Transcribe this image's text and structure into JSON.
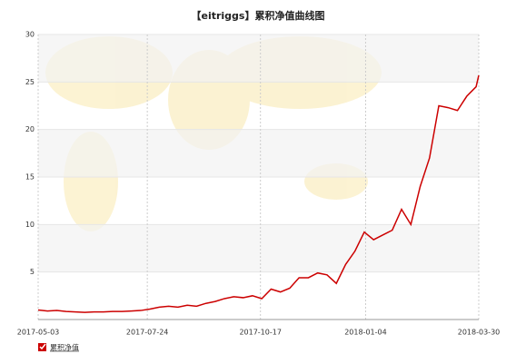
{
  "chart_data": {
    "type": "line",
    "title": "【eitriggs】累积净值曲线图",
    "x": [
      "2017-05-03",
      "2017-05-10",
      "2017-05-17",
      "2017-05-24",
      "2017-05-31",
      "2017-06-07",
      "2017-06-14",
      "2017-06-21",
      "2017-06-28",
      "2017-07-05",
      "2017-07-12",
      "2017-07-19",
      "2017-07-26",
      "2017-08-02",
      "2017-08-09",
      "2017-08-16",
      "2017-08-23",
      "2017-08-30",
      "2017-09-06",
      "2017-09-13",
      "2017-09-20",
      "2017-09-27",
      "2017-10-04",
      "2017-10-11",
      "2017-10-18",
      "2017-10-25",
      "2017-11-01",
      "2017-11-08",
      "2017-11-15",
      "2017-11-22",
      "2017-11-29",
      "2017-12-06",
      "2017-12-13",
      "2017-12-20",
      "2017-12-27",
      "2018-01-03",
      "2018-01-10",
      "2018-01-17",
      "2018-01-24",
      "2018-01-31",
      "2018-02-07",
      "2018-02-14",
      "2018-02-21",
      "2018-02-28",
      "2018-03-07",
      "2018-03-14",
      "2018-03-21",
      "2018-03-28",
      "2018-03-30"
    ],
    "series": [
      {
        "name": "累积净值",
        "color": "#cc0000",
        "values": [
          1.0,
          0.9,
          0.95,
          0.85,
          0.8,
          0.75,
          0.8,
          0.8,
          0.85,
          0.85,
          0.9,
          0.95,
          1.1,
          1.3,
          1.4,
          1.3,
          1.5,
          1.4,
          1.7,
          1.9,
          2.2,
          2.4,
          2.3,
          2.5,
          2.2,
          3.2,
          2.9,
          3.3,
          4.4,
          4.4,
          4.9,
          4.7,
          3.8,
          5.8,
          7.2,
          9.2,
          8.4,
          8.9,
          9.4,
          11.6,
          10.0,
          14.0,
          17.0,
          22.5,
          22.3,
          22.0,
          23.5,
          24.5,
          25.7
        ]
      }
    ],
    "xlim": [
      "2017-05-03",
      "2018-03-30"
    ],
    "xticks": [
      "2017-05-03",
      "2017-07-24",
      "2017-10-17",
      "2018-01-04",
      "2018-03-30"
    ],
    "ylim": [
      0,
      30
    ],
    "yticks": [
      5,
      10,
      15,
      20,
      25,
      30
    ],
    "grid": true
  }
}
